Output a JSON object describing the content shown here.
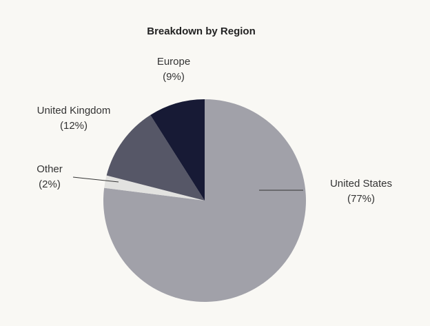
{
  "chart_data": {
    "type": "pie",
    "title": "Breakdown by Region",
    "categories": [
      "United States",
      "Other",
      "United Kingdom",
      "Europe"
    ],
    "values": [
      77,
      2,
      12,
      9
    ],
    "value_labels": [
      "(77%)",
      "(2%)",
      "(12%)",
      "(9%)"
    ],
    "colors": [
      "#a1a1a9",
      "#e2e2e0",
      "#565767",
      "#171a35"
    ]
  }
}
